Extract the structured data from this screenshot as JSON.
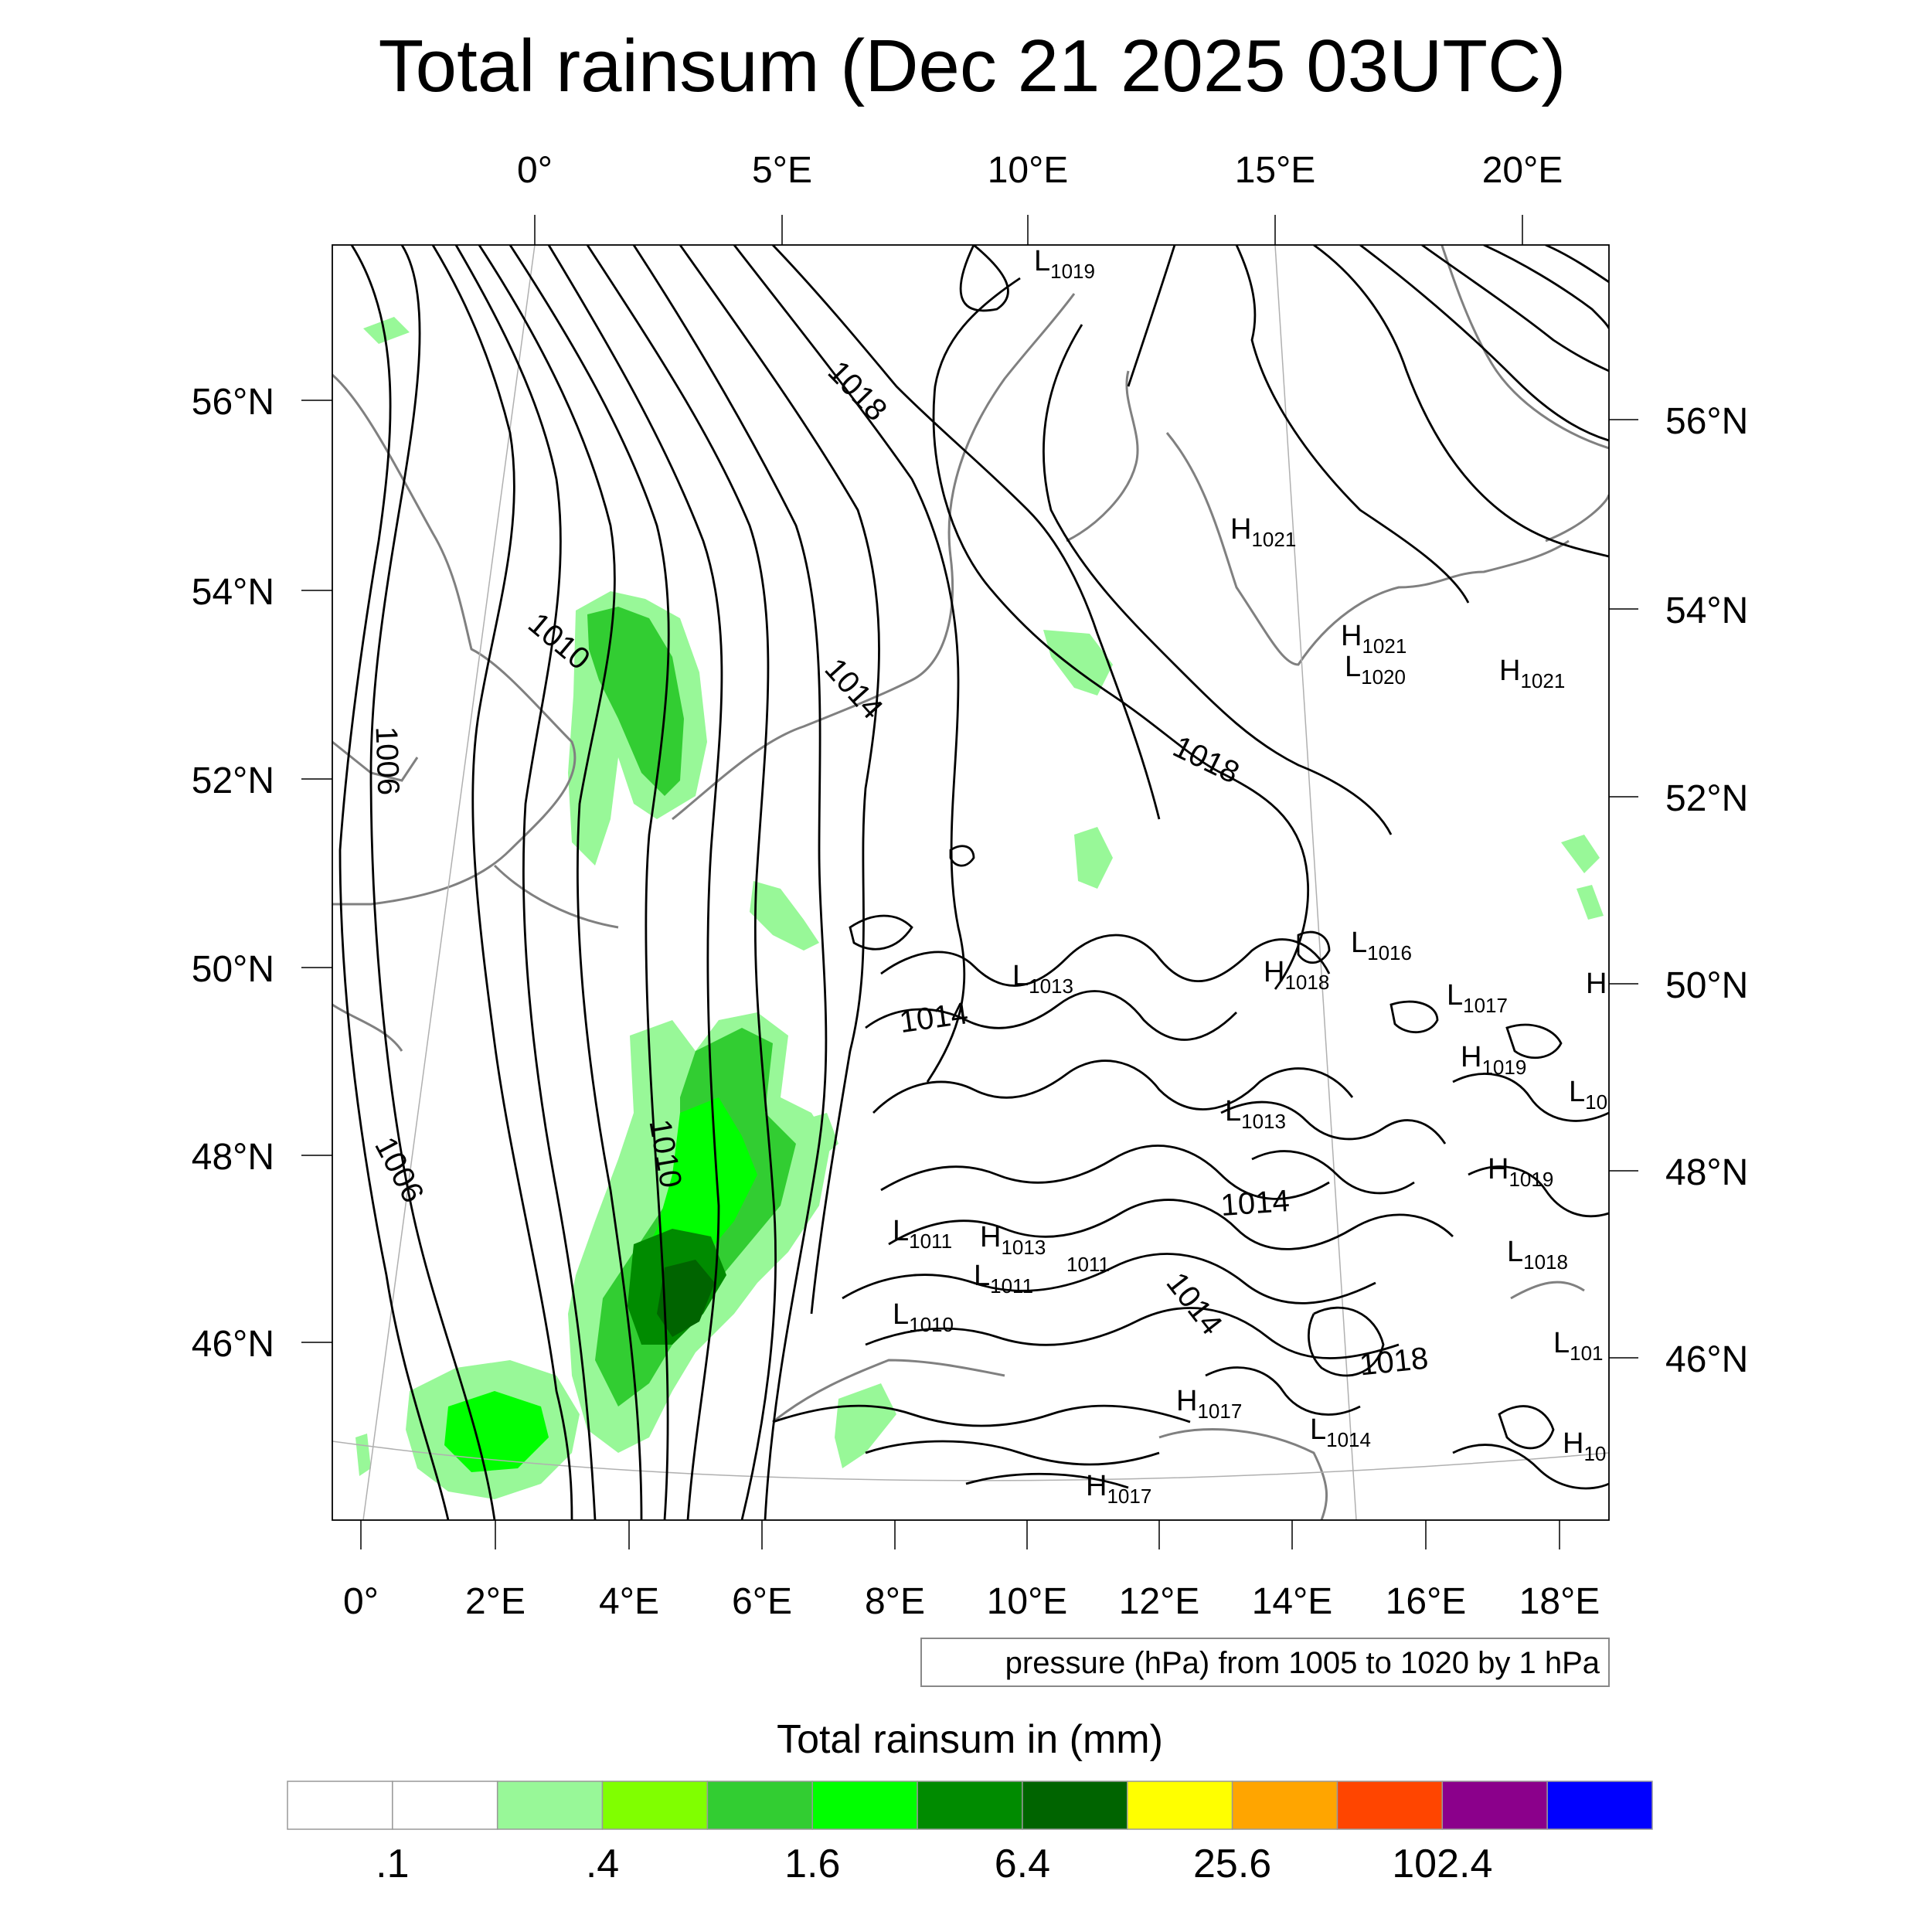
{
  "title": "Total rainsum (Dec 21 2025 03UTC)",
  "map": {
    "lon_ticks_top": [
      "0°",
      "5°E",
      "10°E",
      "15°E",
      "20°E"
    ],
    "lon_ticks_bottom": [
      "0°",
      "2°E",
      "4°E",
      "6°E",
      "8°E",
      "10°E",
      "12°E",
      "14°E",
      "16°E",
      "18°E"
    ],
    "lat_ticks_left": [
      "56°N",
      "54°N",
      "52°N",
      "50°N",
      "48°N",
      "46°N"
    ],
    "lat_ticks_right": [
      "56°N",
      "54°N",
      "52°N",
      "50°N",
      "48°N",
      "46°N"
    ],
    "isobar_labels": [
      "1006",
      "1006",
      "1010",
      "1010",
      "1014",
      "1014",
      "1014",
      "1014",
      "1018",
      "1018",
      "1018"
    ],
    "pressure_centers": [
      {
        "kind": "L",
        "value": "1019"
      },
      {
        "kind": "H",
        "value": "1021"
      },
      {
        "kind": "H",
        "value": "1021"
      },
      {
        "kind": "L",
        "value": "1020"
      },
      {
        "kind": "H",
        "value": "1021"
      },
      {
        "kind": "L",
        "value": "1016"
      },
      {
        "kind": "H",
        "value": "1018"
      },
      {
        "kind": "L",
        "value": "1017"
      },
      {
        "kind": "H",
        "value": ""
      },
      {
        "kind": "L",
        "value": "1013"
      },
      {
        "kind": "H",
        "value": "1019"
      },
      {
        "kind": "L",
        "value": "10"
      },
      {
        "kind": "L",
        "value": "1013"
      },
      {
        "kind": "H",
        "value": "1019"
      },
      {
        "kind": "L",
        "value": "1011"
      },
      {
        "kind": "H",
        "value": "1013"
      },
      {
        "kind": "L",
        "value": "1011"
      },
      {
        "kind": "L",
        "value": "1018"
      },
      {
        "kind": "L",
        "value": "1010"
      },
      {
        "kind": "L",
        "value": "101"
      },
      {
        "kind": "H",
        "value": "1017"
      },
      {
        "kind": "L",
        "value": "1014"
      },
      {
        "kind": "H",
        "value": "10"
      },
      {
        "kind": "H",
        "value": "1017"
      }
    ],
    "isolated_labels": [
      "1011"
    ],
    "contour_note": "pressure (hPa) from 1005 to 1020 by 1 hPa"
  },
  "colorbar": {
    "title": "Total rainsum in (mm)",
    "colors": [
      "#ffffff",
      "#ffffff",
      "#98f898",
      "#80ff00",
      "#32cd32",
      "#00ff00",
      "#008b00",
      "#006400",
      "#ffff00",
      "#ffa500",
      "#ff4500",
      "#8b008b",
      "#0000ff"
    ],
    "tick_labels": [
      ".1",
      ".4",
      "1.6",
      "6.4",
      "25.6",
      "102.4"
    ]
  }
}
